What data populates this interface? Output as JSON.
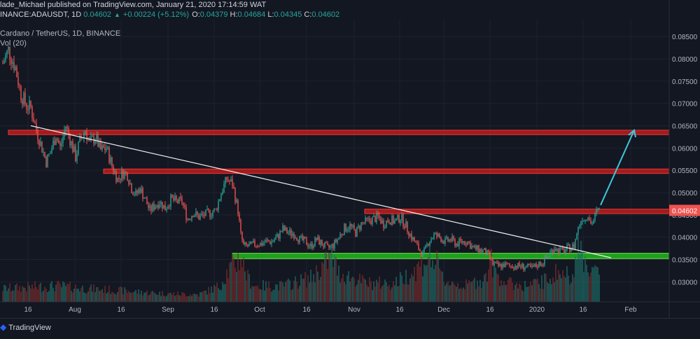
{
  "header": {
    "author": "lade_Michael",
    "published_text": "published on TradingView.com, January 21, 2020 17:14:59 WAT",
    "symbol": "INANCE:ADAUSDT, 1D",
    "last": "0.04602",
    "change": "+0.00224 (+5.12%)",
    "o_label": "O:",
    "o_value": "0.04379",
    "h_label": "H:",
    "h_value": "0.04684",
    "l_label": "L:",
    "l_value": "0.04345",
    "c_label": "C:",
    "c_value": "0.04602"
  },
  "legend": {
    "title": "Cardano / TetherUS, 1D, BINANCE",
    "volume": "Vol (20)"
  },
  "footer": {
    "brand": "TradingView"
  },
  "colors": {
    "background": "#131722",
    "up": "#26a69a",
    "down": "#ef5350",
    "resistance_zone": "#b71c1c",
    "support_zone": "#1fb41f",
    "trendline": "#ffffff",
    "projection": "#3cc8dc",
    "price_tag": "#ef5350"
  },
  "chart_data": {
    "type": "candlestick",
    "price_axis_ticks": [
      "0.08500",
      "0.08000",
      "0.07500",
      "0.07000",
      "0.06500",
      "0.06000",
      "0.05500",
      "0.05000",
      "0.04500",
      "0.04000",
      "0.03500",
      "0.03000"
    ],
    "time_axis_ticks": [
      "16",
      "Aug",
      "16",
      "Sep",
      "16",
      "Oct",
      "16",
      "Nov",
      "16",
      "Dec",
      "16",
      "2020",
      "16",
      "Feb"
    ],
    "ylim": [
      0.0255,
      0.0888
    ],
    "last_price_label": "0.04602",
    "grid": true,
    "price_waypoints": [
      [
        0,
        0.079
      ],
      [
        4,
        0.082
      ],
      [
        9,
        0.078
      ],
      [
        13,
        0.072
      ],
      [
        17,
        0.0695
      ],
      [
        20,
        0.069
      ],
      [
        24,
        0.064
      ],
      [
        27,
        0.061
      ],
      [
        31,
        0.057
      ],
      [
        34,
        0.059
      ],
      [
        38,
        0.063
      ],
      [
        41,
        0.06
      ],
      [
        45,
        0.065
      ],
      [
        48,
        0.062
      ],
      [
        52,
        0.058
      ],
      [
        55,
        0.0615
      ],
      [
        59,
        0.064
      ],
      [
        62,
        0.061
      ],
      [
        66,
        0.0625
      ],
      [
        70,
        0.0595
      ],
      [
        74,
        0.06
      ],
      [
        78,
        0.056
      ],
      [
        82,
        0.053
      ],
      [
        86,
        0.0545
      ],
      [
        89,
        0.054
      ],
      [
        92,
        0.051
      ],
      [
        95,
        0.0495
      ],
      [
        98,
        0.051
      ],
      [
        101,
        0.049
      ],
      [
        105,
        0.046
      ],
      [
        108,
        0.047
      ],
      [
        112,
        0.048
      ],
      [
        116,
        0.0465
      ],
      [
        120,
        0.0485
      ],
      [
        124,
        0.048
      ],
      [
        128,
        0.048
      ],
      [
        132,
        0.044
      ],
      [
        136,
        0.0455
      ],
      [
        140,
        0.0445
      ],
      [
        144,
        0.045
      ],
      [
        148,
        0.0455
      ],
      [
        152,
        0.046
      ],
      [
        156,
        0.05
      ],
      [
        160,
        0.053
      ],
      [
        164,
        0.052
      ],
      [
        168,
        0.046
      ],
      [
        170,
        0.0405
      ],
      [
        172,
        0.038
      ],
      [
        176,
        0.038
      ],
      [
        180,
        0.0385
      ],
      [
        184,
        0.0385
      ],
      [
        188,
        0.039
      ],
      [
        192,
        0.039
      ],
      [
        196,
        0.04
      ],
      [
        200,
        0.0418
      ],
      [
        204,
        0.041
      ],
      [
        208,
        0.0408
      ],
      [
        212,
        0.0395
      ],
      [
        216,
        0.039
      ],
      [
        220,
        0.038
      ],
      [
        224,
        0.0395
      ],
      [
        228,
        0.0385
      ],
      [
        232,
        0.0375
      ],
      [
        236,
        0.0382
      ],
      [
        240,
        0.04
      ],
      [
        244,
        0.042
      ],
      [
        248,
        0.0425
      ],
      [
        252,
        0.041
      ],
      [
        256,
        0.043
      ],
      [
        260,
        0.0435
      ],
      [
        264,
        0.044
      ],
      [
        268,
        0.0445
      ],
      [
        272,
        0.043
      ],
      [
        276,
        0.044
      ],
      [
        280,
        0.0435
      ],
      [
        284,
        0.0445
      ],
      [
        288,
        0.0425
      ],
      [
        292,
        0.04
      ],
      [
        296,
        0.038
      ],
      [
        300,
        0.036
      ],
      [
        304,
        0.039
      ],
      [
        308,
        0.0405
      ],
      [
        312,
        0.04
      ],
      [
        316,
        0.039
      ],
      [
        320,
        0.0395
      ],
      [
        324,
        0.0385
      ],
      [
        328,
        0.039
      ],
      [
        332,
        0.039
      ],
      [
        336,
        0.0375
      ],
      [
        340,
        0.0372
      ],
      [
        344,
        0.0368
      ],
      [
        348,
        0.0355
      ],
      [
        350,
        0.034
      ],
      [
        354,
        0.0335
      ],
      [
        358,
        0.0338
      ],
      [
        362,
        0.0335
      ],
      [
        366,
        0.0336
      ],
      [
        370,
        0.0335
      ],
      [
        374,
        0.0333
      ],
      [
        378,
        0.033
      ],
      [
        382,
        0.0338
      ],
      [
        386,
        0.0345
      ],
      [
        390,
        0.036
      ],
      [
        394,
        0.0378
      ],
      [
        396,
        0.0372
      ],
      [
        400,
        0.0368
      ],
      [
        404,
        0.0375
      ],
      [
        408,
        0.038
      ],
      [
        410,
        0.041
      ],
      [
        412,
        0.043
      ],
      [
        414,
        0.0445
      ],
      [
        416,
        0.044
      ],
      [
        418,
        0.0455
      ],
      [
        420,
        0.043
      ],
      [
        422,
        0.0438
      ],
      [
        424,
        0.0455
      ],
      [
        426,
        0.046
      ]
    ],
    "volume_waypoints": [
      [
        0,
        0.25
      ],
      [
        20,
        0.28
      ],
      [
        40,
        0.3
      ],
      [
        60,
        0.25
      ],
      [
        80,
        0.22
      ],
      [
        100,
        0.18
      ],
      [
        120,
        0.15
      ],
      [
        140,
        0.14
      ],
      [
        155,
        0.3
      ],
      [
        160,
        0.55
      ],
      [
        165,
        0.7
      ],
      [
        170,
        0.85
      ],
      [
        175,
        0.45
      ],
      [
        180,
        0.3
      ],
      [
        200,
        0.3
      ],
      [
        220,
        0.45
      ],
      [
        235,
        0.85
      ],
      [
        240,
        0.55
      ],
      [
        260,
        0.35
      ],
      [
        280,
        0.35
      ],
      [
        295,
        0.6
      ],
      [
        300,
        0.75
      ],
      [
        305,
        0.85
      ],
      [
        310,
        0.7
      ],
      [
        315,
        0.4
      ],
      [
        330,
        0.3
      ],
      [
        345,
        0.45
      ],
      [
        348,
        0.8
      ],
      [
        352,
        0.55
      ],
      [
        360,
        0.35
      ],
      [
        375,
        0.3
      ],
      [
        388,
        0.4
      ],
      [
        395,
        0.55
      ],
      [
        405,
        0.5
      ],
      [
        410,
        0.85
      ],
      [
        413,
        1.0
      ],
      [
        416,
        0.75
      ],
      [
        420,
        0.65
      ],
      [
        426,
        0.5
      ]
    ],
    "zones": [
      {
        "name": "resistance-top",
        "low": 0.063,
        "high": 0.064,
        "color": "#b71c1c"
      },
      {
        "name": "resistance-mid",
        "low": 0.0543,
        "high": 0.0553,
        "color": "#b71c1c"
      },
      {
        "name": "resistance-low",
        "low": 0.0453,
        "high": 0.0463,
        "color": "#b71c1c"
      },
      {
        "name": "support",
        "low": 0.0352,
        "high": 0.0364,
        "color": "#1fb41f"
      }
    ]
  }
}
